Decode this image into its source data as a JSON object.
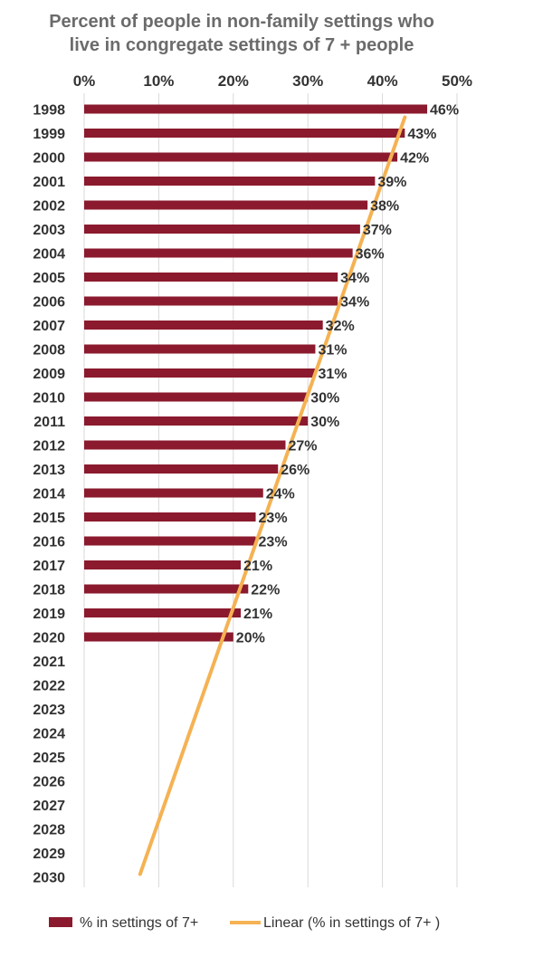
{
  "chart_data": {
    "type": "bar",
    "orientation": "horizontal",
    "title": "Percent of people in non-family settings who live in congregate settings of 7 + people",
    "title_lines": [
      "Percent of people in non-family settings who",
      "live in congregate settings of 7 + people"
    ],
    "categories": [
      "1998",
      "1999",
      "2000",
      "2001",
      "2002",
      "2003",
      "2004",
      "2005",
      "2006",
      "2007",
      "2008",
      "2009",
      "2010",
      "2011",
      "2012",
      "2013",
      "2014",
      "2015",
      "2016",
      "2017",
      "2018",
      "2019",
      "2020",
      "2021",
      "2022",
      "2023",
      "2024",
      "2025",
      "2026",
      "2027",
      "2028",
      "2029",
      "2030"
    ],
    "series": [
      {
        "name": "% in settings of 7+",
        "values": [
          46,
          43,
          42,
          39,
          38,
          37,
          36,
          34,
          34,
          32,
          31,
          31,
          30,
          30,
          27,
          26,
          24,
          23,
          23,
          21,
          22,
          21,
          20,
          null,
          null,
          null,
          null,
          null,
          null,
          null,
          null,
          null,
          null
        ],
        "labels": [
          "46%",
          "43%",
          "42%",
          "39%",
          "38%",
          "37%",
          "36%",
          "34%",
          "34%",
          "32%",
          "31%",
          "31%",
          "30%",
          "30%",
          "27%",
          "26%",
          "24%",
          "23%",
          "23%",
          "21%",
          "22%",
          "21%",
          "20%",
          "",
          "",
          "",
          "",
          "",
          "",
          "",
          "",
          "",
          ""
        ],
        "color": "#8b1a2e"
      }
    ],
    "trendline": {
      "name": "Linear (% in settings of 7+ )",
      "type": "linear",
      "color": "#f5b253",
      "start": {
        "category": "1998",
        "value": 43
      },
      "end": {
        "category": "2030",
        "value": 7.5
      }
    },
    "xticks": [
      "0%",
      "10%",
      "20%",
      "30%",
      "40%",
      "50%"
    ],
    "xlim": [
      0,
      50
    ],
    "x_axis_position": "top",
    "grid": true,
    "legend_position": "bottom"
  }
}
